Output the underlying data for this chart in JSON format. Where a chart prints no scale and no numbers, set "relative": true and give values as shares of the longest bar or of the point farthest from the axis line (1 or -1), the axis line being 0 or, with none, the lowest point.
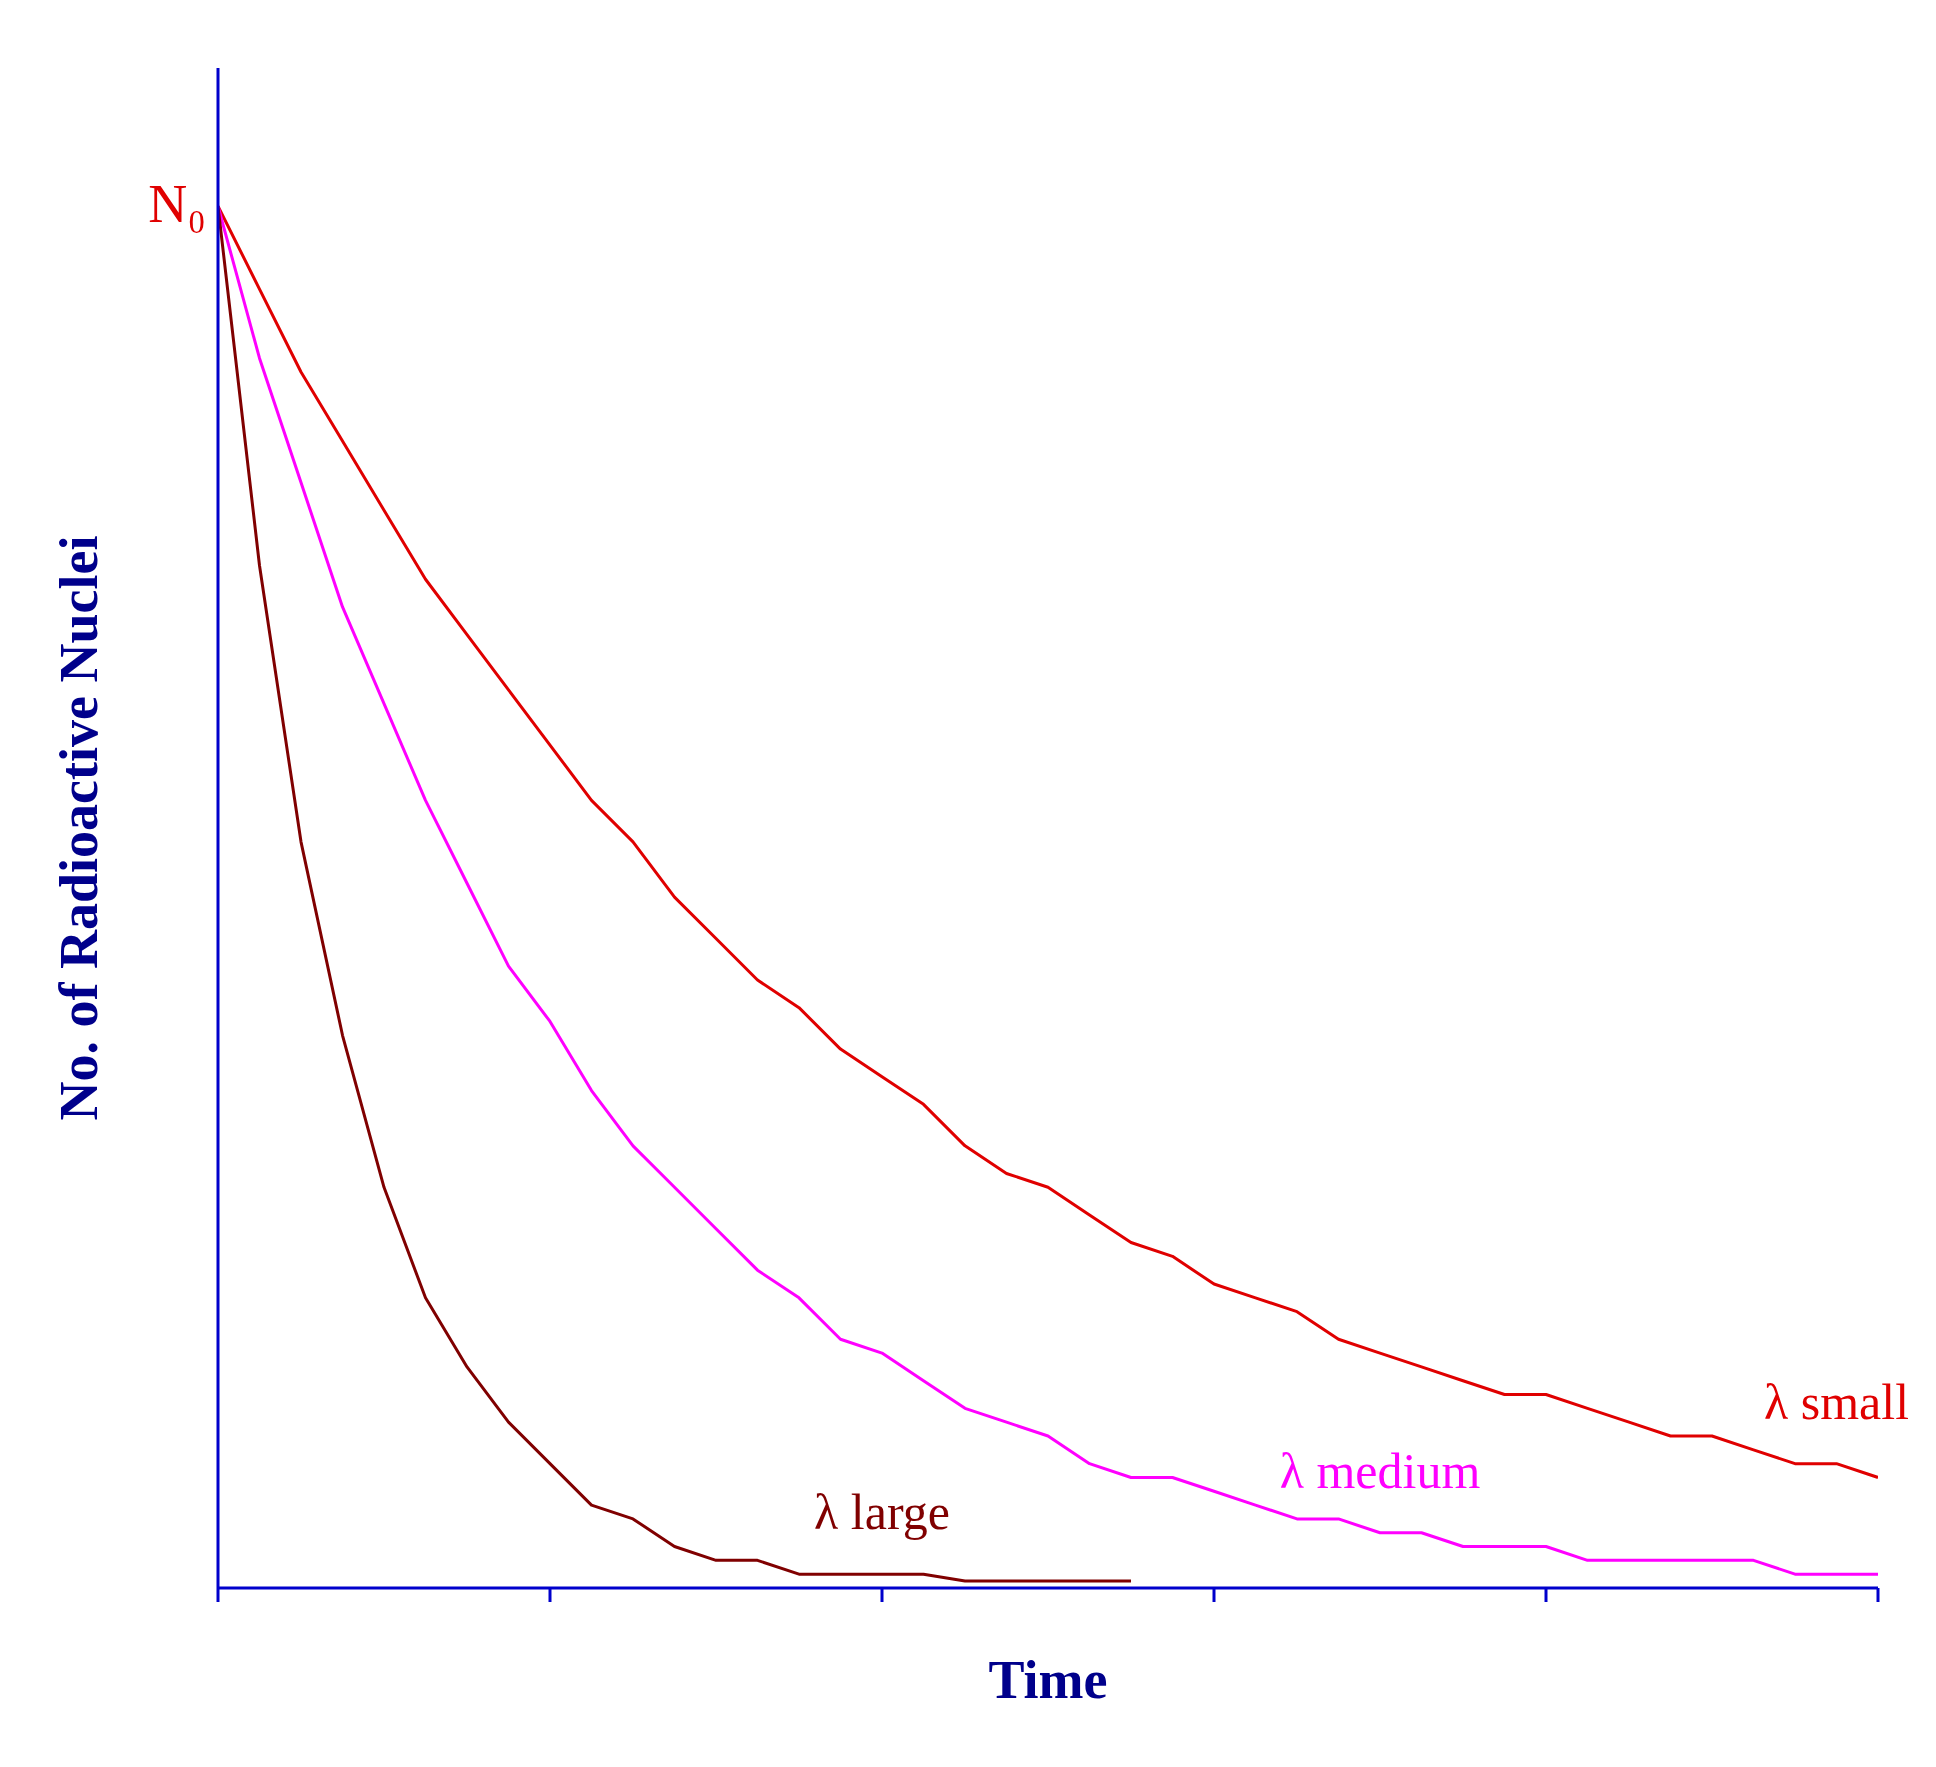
{
  "chart_data": {
    "type": "line",
    "relative": true,
    "xlabel": "Time",
    "ylabel": "No. of Radioactive Nuclei",
    "annotations": [
      "N₀"
    ],
    "legend": false,
    "marker": "none",
    "line_style": "solid",
    "categories": [
      null,
      null,
      null,
      null,
      null,
      null,
      null,
      null,
      null,
      null,
      null,
      null,
      null,
      null,
      null,
      null,
      null,
      null,
      null,
      null,
      null,
      null,
      null,
      null,
      null,
      null,
      null,
      null,
      null,
      null,
      null,
      null,
      null,
      null,
      null,
      null,
      null,
      null,
      null,
      null,
      null
    ],
    "series": [
      {
        "name": "λ small",
        "color": "#e00000",
        "values": [
          1,
          0.94,
          0.88,
          0.83,
          0.78,
          0.73,
          0.69,
          0.65,
          0.61,
          0.57,
          0.54,
          0.5,
          0.47,
          0.44,
          0.42,
          0.39,
          0.37,
          0.35,
          0.32,
          0.3,
          0.29,
          0.27,
          0.25,
          0.24,
          0.22,
          0.21,
          0.2,
          0.18,
          0.17,
          0.16,
          0.15,
          0.14,
          0.14,
          0.13,
          0.12,
          0.11,
          0.11,
          0.1,
          0.09,
          0.09,
          0.08
        ]
      },
      {
        "name": "λ medium",
        "color": "#ff00ff",
        "values": [
          1,
          0.89,
          0.8,
          0.71,
          0.64,
          0.57,
          0.51,
          0.45,
          0.41,
          0.36,
          0.32,
          0.29,
          0.26,
          0.23,
          0.21,
          0.18,
          0.17,
          0.15,
          0.13,
          0.12,
          0.11,
          0.09,
          0.08,
          0.08,
          0.07,
          0.06,
          0.05,
          0.05,
          0.04,
          0.04,
          0.03,
          0.03,
          0.03,
          0.02,
          0.02,
          0.02,
          0.02,
          0.02,
          0.01,
          0.01,
          0.01
        ]
      },
      {
        "name": "λ large",
        "color": "#800000",
        "values": [
          1,
          0.74,
          0.54,
          0.4,
          0.29,
          0.21,
          0.16,
          0.12,
          0.09,
          0.06,
          0.05,
          0.03,
          0.02,
          0.02,
          0.01,
          0.01,
          0.01,
          0.01,
          0.005,
          0.005,
          0.005,
          0.005,
          0.005,
          null,
          null,
          null,
          null,
          null,
          null,
          null,
          null,
          null,
          null,
          null,
          null,
          null,
          null,
          null,
          null,
          null,
          null
        ]
      }
    ]
  }
}
